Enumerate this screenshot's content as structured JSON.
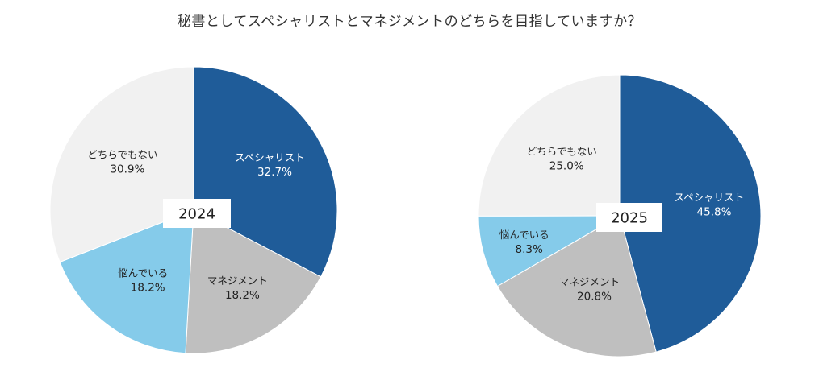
{
  "title": "秘書としてスペシャリストとマネジメントのどちらを目指していますか？",
  "chart_data": [
    {
      "type": "pie",
      "title": "2024",
      "categories": [
        "スペシャリスト",
        "マネジメント",
        "悩んでいる",
        "どちらでもない"
      ],
      "values": [
        32.7,
        18.2,
        18.2,
        30.9
      ],
      "labels": [
        "32.7%",
        "18.2%",
        "18.2%",
        "30.9%"
      ],
      "colors": [
        "#1f5c99",
        "#bfbfbf",
        "#85cbea",
        "#f1f1f1"
      ]
    },
    {
      "type": "pie",
      "title": "2025",
      "categories": [
        "スペシャリスト",
        "マネジメント",
        "悩んでいる",
        "どちらでもない"
      ],
      "values": [
        45.8,
        20.8,
        8.3,
        25.0
      ],
      "labels": [
        "45.8%",
        "20.8%",
        "8.3%",
        "25.0%"
      ],
      "colors": [
        "#1f5c99",
        "#bfbfbf",
        "#85cbea",
        "#f1f1f1"
      ]
    }
  ]
}
